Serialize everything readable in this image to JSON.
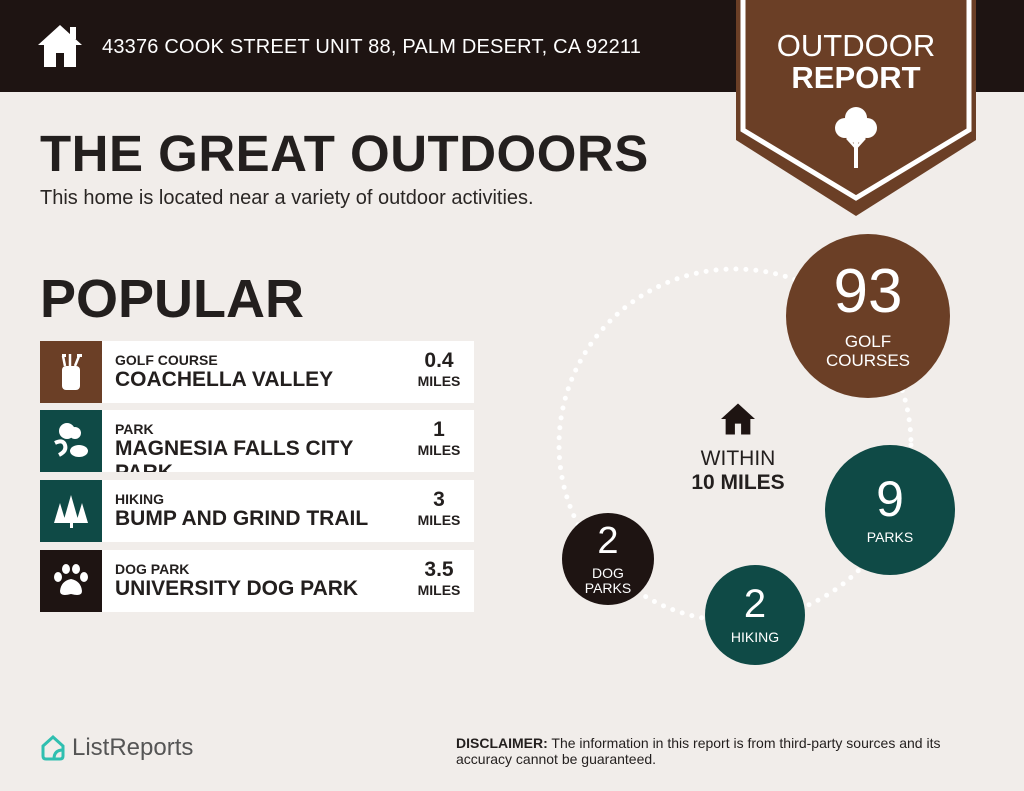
{
  "header": {
    "address": "43376 COOK STREET UNIT 88, PALM DESERT, CA 92211",
    "icon": "house-icon"
  },
  "badge": {
    "line1": "OUTDOOR",
    "line2": "REPORT",
    "icon": "tree-icon"
  },
  "title": "THE GREAT OUTDOORS",
  "subtitle": "This home is located near a variety of outdoor activities.",
  "popular": {
    "heading": "POPULAR",
    "items": [
      {
        "category": "GOLF COURSE",
        "name": "COACHELLA VALLEY",
        "distance": "0.4",
        "unit": "MILES",
        "icon": "golf-bag-icon",
        "color": "#6b3f26"
      },
      {
        "category": "PARK",
        "name": "MAGNESIA FALLS CITY PARK",
        "distance": "1",
        "unit": "MILES",
        "icon": "park-icon",
        "color": "#0f4a46"
      },
      {
        "category": "HIKING",
        "name": "BUMP AND GRIND TRAIL",
        "distance": "3",
        "unit": "MILES",
        "icon": "pine-trees-icon",
        "color": "#0f4a46"
      },
      {
        "category": "DOG PARK",
        "name": "UNIVERSITY DOG PARK",
        "distance": "3.5",
        "unit": "MILES",
        "icon": "paw-icon",
        "color": "#1e1412"
      }
    ]
  },
  "within": {
    "line1": "WITHIN",
    "line2": "10 MILES"
  },
  "counts": [
    {
      "value": "93",
      "label1": "GOLF",
      "label2": "COURSES",
      "color": "#6b3f26"
    },
    {
      "value": "9",
      "label1": "PARKS",
      "label2": "",
      "color": "#0f4a46"
    },
    {
      "value": "2",
      "label1": "HIKING",
      "label2": "",
      "color": "#0f4a46"
    },
    {
      "value": "2",
      "label1": "DOG",
      "label2": "PARKS",
      "color": "#1e1412"
    }
  ],
  "footer": {
    "logo": "ListReports",
    "disclaimer_label": "DISCLAIMER:",
    "disclaimer": " The information in this report is from third-party sources and its accuracy cannot be guaranteed."
  }
}
